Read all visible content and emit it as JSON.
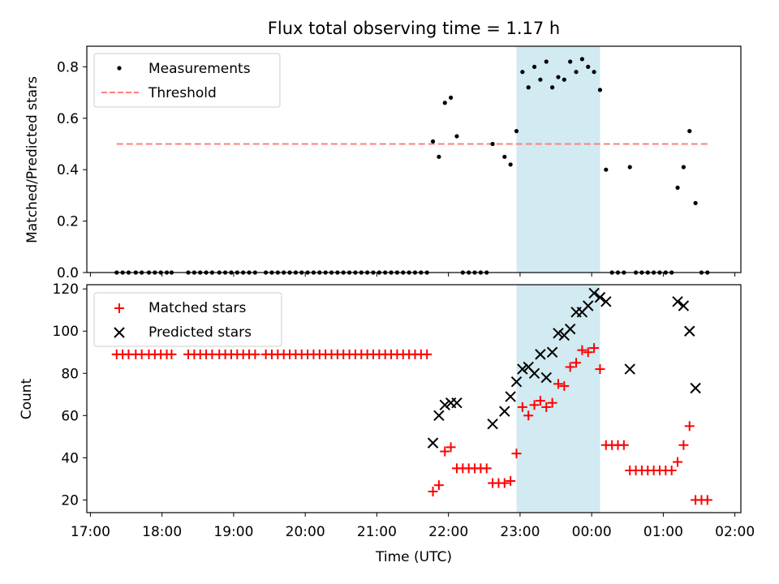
{
  "figure": {
    "title": "Flux total observing time = 1.17 h"
  },
  "chart_data": [
    {
      "type": "scatter",
      "title": "Flux total observing time = 1.17 h",
      "xlabel": "",
      "ylabel": "Matched/Predicted stars",
      "xlim": [
        "16:57",
        "02:05"
      ],
      "ylim": [
        0,
        0.88
      ],
      "yticks": [
        "0.0",
        "0.2",
        "0.4",
        "0.6",
        "0.8"
      ],
      "legend": {
        "placement": "upper-left",
        "entries": [
          "Measurements",
          "Threshold"
        ]
      },
      "grid": false,
      "highlight_span": {
        "start": "22:57",
        "end": "00:07",
        "color": "#add8e6"
      },
      "series": [
        {
          "name": "Measurements",
          "marker": "dot",
          "color": "#000000",
          "points": [
            [
              "17:22",
              0
            ],
            [
              "17:27",
              0
            ],
            [
              "17:32",
              0
            ],
            [
              "17:38",
              0
            ],
            [
              "17:43",
              0
            ],
            [
              "17:49",
              0
            ],
            [
              "17:54",
              0
            ],
            [
              "17:59",
              0
            ],
            [
              "18:04",
              0
            ],
            [
              "18:08",
              0
            ],
            [
              "18:22",
              0
            ],
            [
              "18:27",
              0
            ],
            [
              "18:32",
              0
            ],
            [
              "18:37",
              0
            ],
            [
              "18:42",
              0
            ],
            [
              "18:48",
              0
            ],
            [
              "18:53",
              0
            ],
            [
              "18:58",
              0
            ],
            [
              "19:03",
              0
            ],
            [
              "19:08",
              0
            ],
            [
              "19:13",
              0
            ],
            [
              "19:18",
              0
            ],
            [
              "19:27",
              0
            ],
            [
              "19:32",
              0
            ],
            [
              "19:37",
              0
            ],
            [
              "19:42",
              0
            ],
            [
              "19:47",
              0
            ],
            [
              "19:52",
              0
            ],
            [
              "19:57",
              0
            ],
            [
              "20:02",
              0
            ],
            [
              "20:07",
              0
            ],
            [
              "20:12",
              0
            ],
            [
              "20:17",
              0
            ],
            [
              "20:22",
              0
            ],
            [
              "20:27",
              0
            ],
            [
              "20:32",
              0
            ],
            [
              "20:37",
              0
            ],
            [
              "20:42",
              0
            ],
            [
              "20:47",
              0
            ],
            [
              "20:52",
              0
            ],
            [
              "20:57",
              0
            ],
            [
              "21:02",
              0
            ],
            [
              "21:07",
              0
            ],
            [
              "21:12",
              0
            ],
            [
              "21:17",
              0
            ],
            [
              "21:22",
              0
            ],
            [
              "21:27",
              0
            ],
            [
              "21:32",
              0
            ],
            [
              "21:37",
              0
            ],
            [
              "21:42",
              0
            ],
            [
              "21:47",
              0.51
            ],
            [
              "21:52",
              0.45
            ],
            [
              "21:57",
              0.66
            ],
            [
              "22:02",
              0.68
            ],
            [
              "22:07",
              0.53
            ],
            [
              "22:12",
              0
            ],
            [
              "22:17",
              0
            ],
            [
              "22:22",
              0
            ],
            [
              "22:27",
              0
            ],
            [
              "22:32",
              0
            ],
            [
              "22:37",
              0.5
            ],
            [
              "22:47",
              0.45
            ],
            [
              "22:52",
              0.42
            ],
            [
              "22:57",
              0.55
            ],
            [
              "23:02",
              0.78
            ],
            [
              "23:07",
              0.72
            ],
            [
              "23:12",
              0.8
            ],
            [
              "23:17",
              0.75
            ],
            [
              "23:22",
              0.82
            ],
            [
              "23:27",
              0.72
            ],
            [
              "23:32",
              0.76
            ],
            [
              "23:37",
              0.75
            ],
            [
              "23:42",
              0.82
            ],
            [
              "23:47",
              0.78
            ],
            [
              "23:52",
              0.83
            ],
            [
              "23:57",
              0.8
            ],
            [
              "00:02",
              0.78
            ],
            [
              "00:07",
              0.71
            ],
            [
              "00:12",
              0.4
            ],
            [
              "00:17",
              0
            ],
            [
              "00:22",
              0
            ],
            [
              "00:27",
              0
            ],
            [
              "00:32",
              0.41
            ],
            [
              "00:37",
              0
            ],
            [
              "00:42",
              0
            ],
            [
              "00:47",
              0
            ],
            [
              "00:52",
              0
            ],
            [
              "00:57",
              0
            ],
            [
              "01:02",
              0
            ],
            [
              "01:07",
              0
            ],
            [
              "01:12",
              0.33
            ],
            [
              "01:17",
              0.41
            ],
            [
              "01:22",
              0.55
            ],
            [
              "01:27",
              0.27
            ],
            [
              "01:32",
              0
            ],
            [
              "01:37",
              0
            ]
          ]
        },
        {
          "name": "Threshold",
          "style": "dashed",
          "color": "#ff7f7f",
          "points": [
            [
              "17:22",
              0.5
            ],
            [
              "01:37",
              0.5
            ]
          ]
        }
      ]
    },
    {
      "type": "scatter",
      "title": "",
      "xlabel": "Time (UTC)",
      "ylabel": "Count",
      "xlim": [
        "16:57",
        "02:05"
      ],
      "ylim": [
        14,
        122
      ],
      "xticks": [
        "17:00",
        "18:00",
        "19:00",
        "20:00",
        "21:00",
        "22:00",
        "23:00",
        "00:00",
        "01:00",
        "02:00"
      ],
      "yticks": [
        "20",
        "40",
        "60",
        "80",
        "100",
        "120"
      ],
      "legend": {
        "placement": "upper-left",
        "entries": [
          "Matched stars",
          "Predicted stars"
        ]
      },
      "grid": false,
      "highlight_span": {
        "start": "22:57",
        "end": "00:07",
        "color": "#add8e6"
      },
      "series": [
        {
          "name": "Matched stars",
          "marker": "plus",
          "color": "#ff0000",
          "points": [
            [
              "17:22",
              89
            ],
            [
              "17:27",
              89
            ],
            [
              "17:32",
              89
            ],
            [
              "17:38",
              89
            ],
            [
              "17:43",
              89
            ],
            [
              "17:49",
              89
            ],
            [
              "17:54",
              89
            ],
            [
              "17:59",
              89
            ],
            [
              "18:04",
              89
            ],
            [
              "18:08",
              89
            ],
            [
              "18:22",
              89
            ],
            [
              "18:27",
              89
            ],
            [
              "18:32",
              89
            ],
            [
              "18:37",
              89
            ],
            [
              "18:42",
              89
            ],
            [
              "18:48",
              89
            ],
            [
              "18:53",
              89
            ],
            [
              "18:58",
              89
            ],
            [
              "19:03",
              89
            ],
            [
              "19:08",
              89
            ],
            [
              "19:13",
              89
            ],
            [
              "19:18",
              89
            ],
            [
              "19:27",
              89
            ],
            [
              "19:32",
              89
            ],
            [
              "19:37",
              89
            ],
            [
              "19:42",
              89
            ],
            [
              "19:47",
              89
            ],
            [
              "19:52",
              89
            ],
            [
              "19:57",
              89
            ],
            [
              "20:02",
              89
            ],
            [
              "20:07",
              89
            ],
            [
              "20:12",
              89
            ],
            [
              "20:17",
              89
            ],
            [
              "20:22",
              89
            ],
            [
              "20:27",
              89
            ],
            [
              "20:32",
              89
            ],
            [
              "20:37",
              89
            ],
            [
              "20:42",
              89
            ],
            [
              "20:47",
              89
            ],
            [
              "20:52",
              89
            ],
            [
              "20:57",
              89
            ],
            [
              "21:02",
              89
            ],
            [
              "21:07",
              89
            ],
            [
              "21:12",
              89
            ],
            [
              "21:17",
              89
            ],
            [
              "21:22",
              89
            ],
            [
              "21:27",
              89
            ],
            [
              "21:32",
              89
            ],
            [
              "21:37",
              89
            ],
            [
              "21:42",
              89
            ],
            [
              "21:47",
              24
            ],
            [
              "21:52",
              27
            ],
            [
              "21:57",
              43
            ],
            [
              "22:02",
              45
            ],
            [
              "22:07",
              35
            ],
            [
              "22:12",
              35
            ],
            [
              "22:17",
              35
            ],
            [
              "22:22",
              35
            ],
            [
              "22:27",
              35
            ],
            [
              "22:32",
              35
            ],
            [
              "22:37",
              28
            ],
            [
              "22:42",
              28
            ],
            [
              "22:47",
              28
            ],
            [
              "22:52",
              29
            ],
            [
              "22:57",
              42
            ],
            [
              "23:02",
              64
            ],
            [
              "23:07",
              60
            ],
            [
              "23:12",
              65
            ],
            [
              "23:17",
              67
            ],
            [
              "23:22",
              64
            ],
            [
              "23:27",
              66
            ],
            [
              "23:32",
              75
            ],
            [
              "23:37",
              74
            ],
            [
              "23:42",
              83
            ],
            [
              "23:47",
              85
            ],
            [
              "23:52",
              91
            ],
            [
              "23:57",
              90
            ],
            [
              "00:02",
              92
            ],
            [
              "00:07",
              82
            ],
            [
              "00:12",
              46
            ],
            [
              "00:17",
              46
            ],
            [
              "00:22",
              46
            ],
            [
              "00:27",
              46
            ],
            [
              "00:32",
              34
            ],
            [
              "00:37",
              34
            ],
            [
              "00:42",
              34
            ],
            [
              "00:47",
              34
            ],
            [
              "00:52",
              34
            ],
            [
              "00:57",
              34
            ],
            [
              "01:02",
              34
            ],
            [
              "01:07",
              34
            ],
            [
              "01:12",
              38
            ],
            [
              "01:17",
              46
            ],
            [
              "01:22",
              55
            ],
            [
              "01:27",
              20
            ],
            [
              "01:32",
              20
            ],
            [
              "01:37",
              20
            ]
          ]
        },
        {
          "name": "Predicted stars",
          "marker": "x",
          "color": "#000000",
          "points": [
            [
              "21:47",
              47
            ],
            [
              "21:52",
              60
            ],
            [
              "21:57",
              65
            ],
            [
              "22:02",
              66
            ],
            [
              "22:07",
              66
            ],
            [
              "22:37",
              56
            ],
            [
              "22:47",
              62
            ],
            [
              "22:52",
              69
            ],
            [
              "22:57",
              76
            ],
            [
              "23:02",
              82
            ],
            [
              "23:07",
              83
            ],
            [
              "23:12",
              80
            ],
            [
              "23:17",
              89
            ],
            [
              "23:22",
              78
            ],
            [
              "23:27",
              90
            ],
            [
              "23:32",
              99
            ],
            [
              "23:37",
              98
            ],
            [
              "23:42",
              101
            ],
            [
              "23:47",
              109
            ],
            [
              "23:52",
              109
            ],
            [
              "23:57",
              112
            ],
            [
              "00:02",
              118
            ],
            [
              "00:07",
              116
            ],
            [
              "00:12",
              114
            ],
            [
              "00:32",
              82
            ],
            [
              "01:12",
              114
            ],
            [
              "01:17",
              112
            ],
            [
              "01:22",
              100
            ],
            [
              "01:27",
              73
            ]
          ]
        }
      ]
    }
  ]
}
